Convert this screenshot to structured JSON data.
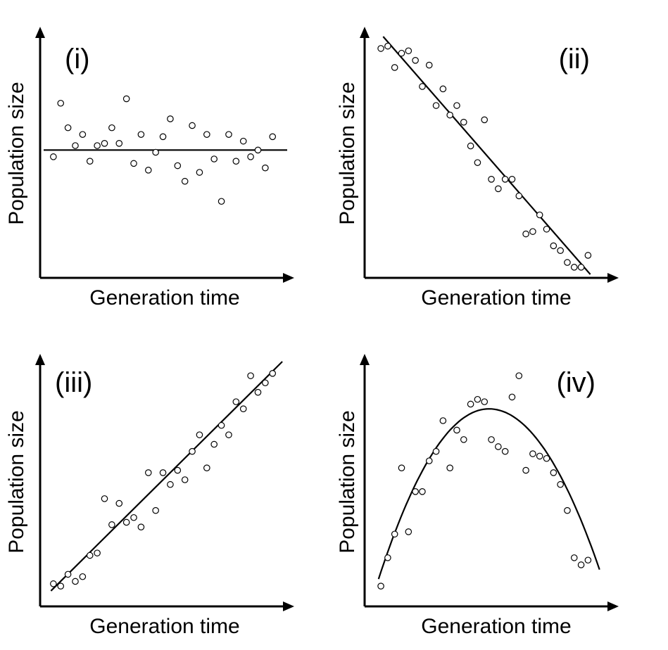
{
  "chart_data": [
    {
      "type": "scatter",
      "title": "(i)",
      "xlabel": "Generation time",
      "ylabel": "Population size",
      "xlim": [
        0,
        100
      ],
      "ylim": [
        0,
        100
      ],
      "trend": {
        "kind": "linear",
        "points": [
          [
            0,
            51
          ],
          [
            100,
            51
          ]
        ]
      },
      "points": [
        [
          4,
          48
        ],
        [
          7,
          72
        ],
        [
          10,
          61
        ],
        [
          13,
          53
        ],
        [
          16,
          58
        ],
        [
          19,
          46
        ],
        [
          22,
          53
        ],
        [
          25,
          54
        ],
        [
          28,
          61
        ],
        [
          31,
          54
        ],
        [
          34,
          74
        ],
        [
          37,
          45
        ],
        [
          40,
          58
        ],
        [
          43,
          42
        ],
        [
          46,
          50
        ],
        [
          49,
          57
        ],
        [
          52,
          65
        ],
        [
          55,
          44
        ],
        [
          58,
          37
        ],
        [
          61,
          62
        ],
        [
          64,
          41
        ],
        [
          67,
          58
        ],
        [
          70,
          47
        ],
        [
          73,
          28
        ],
        [
          76,
          58
        ],
        [
          79,
          46
        ],
        [
          82,
          55
        ],
        [
          85,
          48
        ],
        [
          88,
          51
        ],
        [
          91,
          43
        ],
        [
          94,
          57
        ]
      ]
    },
    {
      "type": "scatter",
      "title": "(ii)",
      "xlabel": "Generation time",
      "ylabel": "Population size",
      "xlim": [
        0,
        100
      ],
      "ylim": [
        0,
        100
      ],
      "trend": {
        "kind": "linear",
        "points": [
          [
            5,
            100
          ],
          [
            95,
            0
          ]
        ]
      },
      "points": [
        [
          4,
          95
        ],
        [
          7,
          96
        ],
        [
          10,
          87
        ],
        [
          13,
          93
        ],
        [
          16,
          94
        ],
        [
          19,
          90
        ],
        [
          22,
          79
        ],
        [
          25,
          88
        ],
        [
          28,
          71
        ],
        [
          31,
          78
        ],
        [
          34,
          67
        ],
        [
          37,
          71
        ],
        [
          40,
          64
        ],
        [
          43,
          54
        ],
        [
          46,
          47
        ],
        [
          49,
          65
        ],
        [
          52,
          40
        ],
        [
          55,
          36
        ],
        [
          58,
          40
        ],
        [
          61,
          40
        ],
        [
          64,
          33
        ],
        [
          67,
          17
        ],
        [
          70,
          18
        ],
        [
          73,
          25
        ],
        [
          76,
          19
        ],
        [
          79,
          12
        ],
        [
          82,
          10
        ],
        [
          85,
          5
        ],
        [
          88,
          3
        ],
        [
          91,
          3
        ],
        [
          94,
          8
        ]
      ]
    },
    {
      "type": "scatter",
      "title": "(iii)",
      "xlabel": "Generation time",
      "ylabel": "Population size",
      "xlim": [
        0,
        100
      ],
      "ylim": [
        0,
        100
      ],
      "trend": {
        "kind": "linear",
        "points": [
          [
            3,
            3
          ],
          [
            98,
            100
          ]
        ]
      },
      "points": [
        [
          4,
          6
        ],
        [
          7,
          5
        ],
        [
          10,
          10
        ],
        [
          13,
          7
        ],
        [
          16,
          9
        ],
        [
          19,
          18
        ],
        [
          22,
          19
        ],
        [
          25,
          42
        ],
        [
          28,
          31
        ],
        [
          31,
          40
        ],
        [
          34,
          32
        ],
        [
          37,
          34
        ],
        [
          40,
          30
        ],
        [
          43,
          53
        ],
        [
          46,
          37
        ],
        [
          49,
          53
        ],
        [
          52,
          48
        ],
        [
          55,
          54
        ],
        [
          58,
          50
        ],
        [
          61,
          62
        ],
        [
          64,
          69
        ],
        [
          67,
          55
        ],
        [
          70,
          65
        ],
        [
          73,
          73
        ],
        [
          76,
          69
        ],
        [
          79,
          83
        ],
        [
          82,
          80
        ],
        [
          85,
          94
        ],
        [
          88,
          87
        ],
        [
          91,
          91
        ],
        [
          94,
          95
        ]
      ]
    },
    {
      "type": "scatter",
      "title": "(iv)",
      "xlabel": "Generation time",
      "ylabel": "Population size",
      "xlim": [
        0,
        100
      ],
      "ylim": [
        0,
        100
      ],
      "trend": {
        "kind": "quadratic",
        "vertex": [
          51,
          80
        ],
        "points": [
          [
            3,
            8
          ],
          [
            99,
            12
          ]
        ]
      },
      "points": [
        [
          4,
          5
        ],
        [
          7,
          17
        ],
        [
          10,
          27
        ],
        [
          13,
          55
        ],
        [
          16,
          28
        ],
        [
          19,
          45
        ],
        [
          22,
          45
        ],
        [
          25,
          58
        ],
        [
          28,
          62
        ],
        [
          31,
          75
        ],
        [
          34,
          55
        ],
        [
          37,
          71
        ],
        [
          40,
          67
        ],
        [
          43,
          82
        ],
        [
          46,
          84
        ],
        [
          49,
          83
        ],
        [
          52,
          67
        ],
        [
          55,
          64
        ],
        [
          58,
          62
        ],
        [
          61,
          85
        ],
        [
          64,
          94
        ],
        [
          67,
          54
        ],
        [
          70,
          61
        ],
        [
          73,
          60
        ],
        [
          76,
          59
        ],
        [
          79,
          53
        ],
        [
          82,
          48
        ],
        [
          85,
          37
        ],
        [
          88,
          17
        ],
        [
          91,
          14
        ],
        [
          94,
          16
        ]
      ]
    }
  ]
}
